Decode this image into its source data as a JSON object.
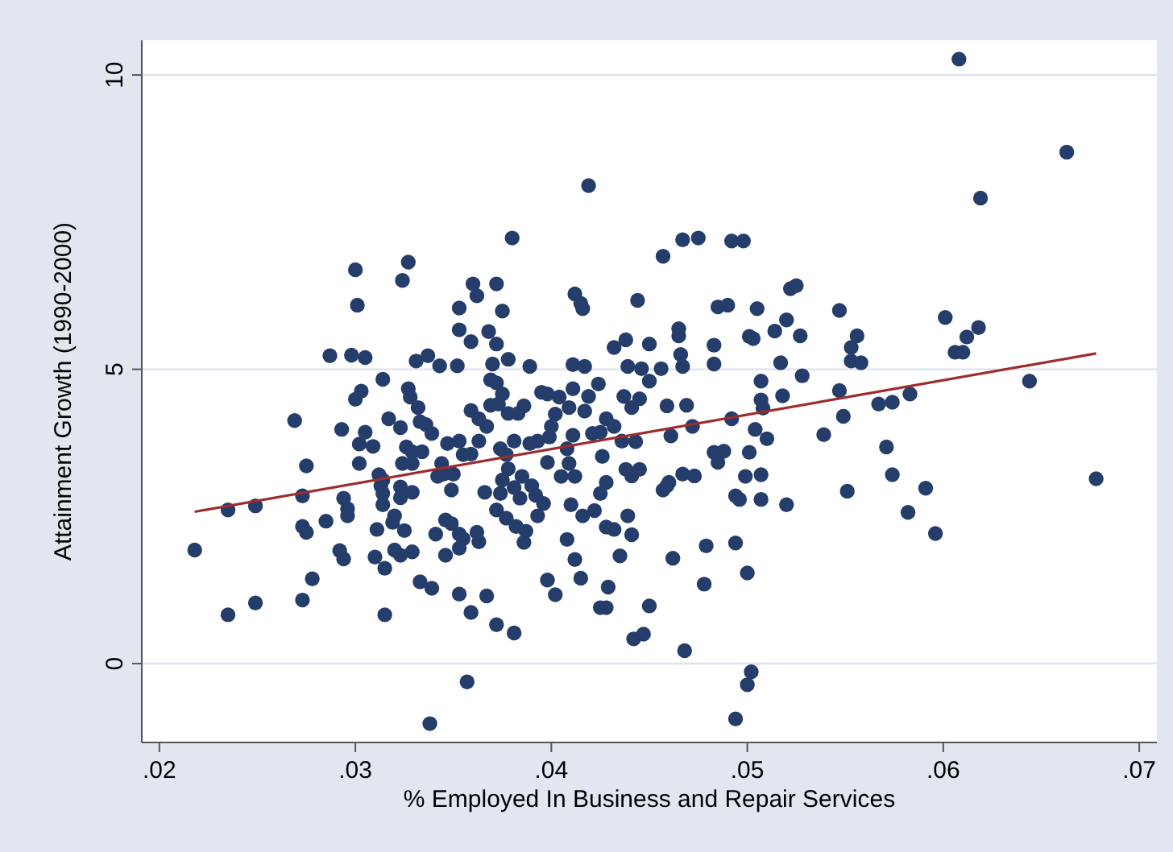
{
  "chart_data": {
    "type": "scatter",
    "xlabel": "% Employed  In Business and Repair Services",
    "ylabel": "Attainment Growth (1990-2000)",
    "xlim": [
      0.0191,
      0.0709
    ],
    "ylim": [
      -1.34,
      10.59
    ],
    "xticks": [
      {
        "value": 0.02,
        "label": ".02"
      },
      {
        "value": 0.03,
        "label": ".03"
      },
      {
        "value": 0.04,
        "label": ".04"
      },
      {
        "value": 0.05,
        "label": ".05"
      },
      {
        "value": 0.06,
        "label": ".06"
      },
      {
        "value": 0.07,
        "label": ".07"
      }
    ],
    "yticks": [
      0,
      5,
      10
    ],
    "grid": "y",
    "series": [
      {
        "color": "#253d6b",
        "marker": "circle",
        "x": [
          0.0218,
          0.0235,
          0.0249,
          0.0235,
          0.0249,
          0.0269,
          0.0273,
          0.0275,
          0.0273,
          0.0275,
          0.0273,
          0.0278,
          0.0285,
          0.0287,
          0.0293,
          0.0294,
          0.0296,
          0.0296,
          0.0292,
          0.0294,
          0.0298,
          0.03,
          0.0301,
          0.03,
          0.0303,
          0.0302,
          0.0305,
          0.0309,
          0.0302,
          0.0305,
          0.0314,
          0.0312,
          0.0314,
          0.0313,
          0.0314,
          0.0314,
          0.0311,
          0.031,
          0.0315,
          0.0315,
          0.0317,
          0.032,
          0.0319,
          0.0323,
          0.0323,
          0.0325,
          0.032,
          0.0323,
          0.0329,
          0.0323,
          0.0327,
          0.0328,
          0.0332,
          0.0326,
          0.0329,
          0.0334,
          0.0324,
          0.0329,
          0.0329,
          0.0331,
          0.0324,
          0.0327,
          0.0333,
          0.0336,
          0.0339,
          0.0337,
          0.0343,
          0.0352,
          0.0333,
          0.0339,
          0.0341,
          0.0346,
          0.0346,
          0.0349,
          0.0342,
          0.0345,
          0.035,
          0.0349,
          0.0344,
          0.0347,
          0.0353,
          0.0353,
          0.0353,
          0.0355,
          0.0362,
          0.0353,
          0.0363,
          0.0359,
          0.0353,
          0.0353,
          0.036,
          0.0362,
          0.0359,
          0.0359,
          0.0355,
          0.0359,
          0.0363,
          0.0367,
          0.0363,
          0.0357,
          0.0338,
          0.0367,
          0.0372,
          0.0381,
          0.0368,
          0.0372,
          0.0372,
          0.0375,
          0.038,
          0.037,
          0.0378,
          0.0369,
          0.0372,
          0.0375,
          0.0369,
          0.0373,
          0.0378,
          0.0383,
          0.0386,
          0.0389,
          0.0366,
          0.0374,
          0.0374,
          0.0377,
          0.0381,
          0.0378,
          0.0375,
          0.0381,
          0.0372,
          0.0377,
          0.0382,
          0.0387,
          0.0386,
          0.0384,
          0.0393,
          0.0385,
          0.039,
          0.0392,
          0.0396,
          0.0389,
          0.0393,
          0.0395,
          0.0398,
          0.04,
          0.0399,
          0.0398,
          0.0402,
          0.0404,
          0.0405,
          0.0409,
          0.0408,
          0.0411,
          0.0409,
          0.0411,
          0.0411,
          0.0417,
          0.0412,
          0.0415,
          0.0416,
          0.0419,
          0.041,
          0.0416,
          0.0422,
          0.0408,
          0.0412,
          0.0415,
          0.0398,
          0.0402,
          0.0412,
          0.0417,
          0.0419,
          0.0424,
          0.0421,
          0.0425,
          0.0425,
          0.0428,
          0.0426,
          0.0428,
          0.0432,
          0.0432,
          0.0438,
          0.0444,
          0.0437,
          0.0441,
          0.0445,
          0.0439,
          0.0446,
          0.045,
          0.0436,
          0.0443,
          0.0438,
          0.0445,
          0.0441,
          0.0428,
          0.0432,
          0.0439,
          0.0441,
          0.0435,
          0.0429,
          0.0425,
          0.0428,
          0.0442,
          0.0447,
          0.045,
          0.045,
          0.0456,
          0.0457,
          0.0467,
          0.0475,
          0.0465,
          0.0465,
          0.0466,
          0.0467,
          0.0459,
          0.0469,
          0.0461,
          0.0472,
          0.0457,
          0.046,
          0.0459,
          0.0467,
          0.0473,
          0.0462,
          0.0468,
          0.0479,
          0.0478,
          0.0483,
          0.0488,
          0.0485,
          0.0483,
          0.0483,
          0.0485,
          0.049,
          0.0492,
          0.0498,
          0.0492,
          0.0494,
          0.0496,
          0.0494,
          0.05,
          0.0499,
          0.0501,
          0.0501,
          0.0503,
          0.0504,
          0.051,
          0.0505,
          0.0507,
          0.0507,
          0.0508,
          0.0507,
          0.0507,
          0.0502,
          0.05,
          0.0494,
          0.0514,
          0.052,
          0.0517,
          0.0518,
          0.0522,
          0.0525,
          0.0527,
          0.0528,
          0.052,
          0.0539,
          0.0547,
          0.0547,
          0.0549,
          0.0551,
          0.0553,
          0.0556,
          0.0553,
          0.0558,
          0.0567,
          0.0574,
          0.0583,
          0.0571,
          0.0574,
          0.0582,
          0.0591,
          0.0596,
          0.0601,
          0.0606,
          0.061,
          0.0612,
          0.0618,
          0.0608,
          0.0619,
          0.0663,
          0.0644,
          0.0678
        ],
        "values": [
          1.93,
          2.61,
          2.68,
          0.83,
          1.03,
          4.13,
          2.85,
          3.36,
          2.33,
          2.23,
          1.08,
          1.44,
          2.42,
          5.23,
          3.98,
          2.81,
          2.63,
          2.51,
          1.92,
          1.78,
          5.24,
          6.69,
          6.09,
          4.49,
          4.63,
          3.73,
          3.93,
          3.69,
          3.4,
          5.2,
          4.83,
          3.21,
          3.12,
          3.02,
          2.89,
          2.7,
          2.28,
          1.81,
          1.62,
          0.83,
          4.16,
          2.51,
          2.4,
          3.0,
          2.82,
          2.26,
          1.93,
          1.84,
          1.9,
          4.01,
          4.67,
          4.53,
          4.35,
          3.68,
          3.6,
          3.6,
          3.4,
          3.4,
          2.91,
          5.14,
          6.51,
          6.82,
          4.11,
          4.06,
          3.91,
          5.23,
          5.06,
          5.06,
          1.39,
          1.28,
          2.2,
          1.84,
          2.44,
          2.38,
          3.18,
          3.22,
          3.22,
          2.95,
          3.4,
          3.74,
          3.78,
          1.18,
          2.2,
          2.12,
          2.23,
          1.96,
          2.07,
          0.87,
          5.67,
          6.04,
          6.45,
          6.25,
          5.47,
          4.3,
          3.55,
          3.56,
          4.16,
          4.03,
          3.78,
          -0.31,
          -1.02,
          1.15,
          0.66,
          0.52,
          5.64,
          5.43,
          6.45,
          5.99,
          7.23,
          5.09,
          5.17,
          4.82,
          4.77,
          4.58,
          4.39,
          4.41,
          4.25,
          4.25,
          4.38,
          5.05,
          2.91,
          2.89,
          3.65,
          3.55,
          3.78,
          3.31,
          3.12,
          2.99,
          2.61,
          2.47,
          2.33,
          2.25,
          2.06,
          2.81,
          2.51,
          3.18,
          3.02,
          2.86,
          2.72,
          3.74,
          3.78,
          4.61,
          4.58,
          4.03,
          3.85,
          3.42,
          4.24,
          4.53,
          3.18,
          3.4,
          3.65,
          3.88,
          4.35,
          4.67,
          5.08,
          5.05,
          6.28,
          6.12,
          6.03,
          8.12,
          2.7,
          2.51,
          2.6,
          2.11,
          1.77,
          1.45,
          1.42,
          1.17,
          3.18,
          4.29,
          4.54,
          4.75,
          3.91,
          3.93,
          2.89,
          3.08,
          3.52,
          4.16,
          4.03,
          5.37,
          5.5,
          6.17,
          4.54,
          4.35,
          4.5,
          5.05,
          5.01,
          5.43,
          3.78,
          3.77,
          3.3,
          3.3,
          3.19,
          2.32,
          2.28,
          2.51,
          2.19,
          1.83,
          1.3,
          0.95,
          0.95,
          0.42,
          0.5,
          0.98,
          4.8,
          5.01,
          6.92,
          7.2,
          7.23,
          5.69,
          5.57,
          5.25,
          5.05,
          4.38,
          4.39,
          3.87,
          4.03,
          2.95,
          3.08,
          3.02,
          3.22,
          3.19,
          1.79,
          0.22,
          2.0,
          1.35,
          3.59,
          3.61,
          3.42,
          5.41,
          5.09,
          6.06,
          6.09,
          7.18,
          7.18,
          4.16,
          2.85,
          2.79,
          2.05,
          1.54,
          3.18,
          3.59,
          5.56,
          5.52,
          3.98,
          3.82,
          6.03,
          4.8,
          4.48,
          4.34,
          3.21,
          2.79,
          -0.14,
          -0.36,
          -0.94,
          5.65,
          5.84,
          5.11,
          4.55,
          6.37,
          6.42,
          5.57,
          4.89,
          2.7,
          3.89,
          6.0,
          4.64,
          4.2,
          2.93,
          5.37,
          5.57,
          5.14,
          5.11,
          4.41,
          4.44,
          4.58,
          3.68,
          3.21,
          2.57,
          2.98,
          2.21,
          5.88,
          5.29,
          5.29,
          5.55,
          5.71,
          10.27,
          7.91,
          8.69,
          4.8,
          3.14
        ]
      },
      {
        "type": "line",
        "color": "#9b2d2d",
        "marker": "none",
        "x": [
          0.0218,
          0.0678
        ],
        "values": [
          2.58,
          5.27
        ]
      }
    ]
  }
}
